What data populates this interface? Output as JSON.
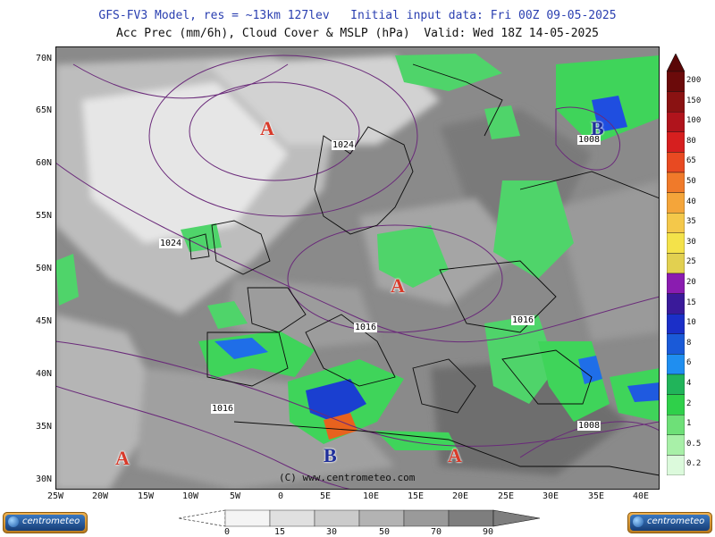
{
  "header": {
    "line1": "GFS-FV3 Model, res = ~13km 127lev   Initial input data: Fri 00Z 09-05-2025",
    "line2": "Acc Prec (mm/6h), Cloud Cover & MSLP (hPa)  Valid: Wed 18Z 14-05-2025"
  },
  "axes": {
    "latitudes": [
      "70N",
      "65N",
      "60N",
      "55N",
      "50N",
      "45N",
      "40N",
      "35N",
      "30N"
    ],
    "longitudes": [
      "25W",
      "20W",
      "15W",
      "10W",
      "5W",
      "0",
      "5E",
      "10E",
      "15E",
      "20E",
      "25E",
      "30E",
      "35E",
      "40E"
    ]
  },
  "pressure_centers": [
    {
      "type": "A",
      "color": "#d83a2a"
    },
    {
      "type": "A",
      "color": "#d83a2a"
    },
    {
      "type": "A",
      "color": "#d83a2a"
    },
    {
      "type": "A",
      "color": "#d83a2a"
    },
    {
      "type": "B",
      "color": "#1f2f9a"
    },
    {
      "type": "B",
      "color": "#1f2f9a"
    }
  ],
  "isobar_labels": [
    "1024",
    "1024",
    "1016",
    "1016",
    "1016",
    "1008",
    "1008"
  ],
  "copyright": "(C) www.centrometeo.com",
  "precip_scale": {
    "labels": [
      "200",
      "150",
      "100",
      "80",
      "65",
      "50",
      "40",
      "35",
      "30",
      "25",
      "20",
      "15",
      "10",
      "8",
      "6",
      "4",
      "2",
      "1",
      "0.5",
      "0.2"
    ],
    "colors": [
      "#6b0a0a",
      "#8a1212",
      "#b0141c",
      "#d61f1f",
      "#e84a22",
      "#f07a2a",
      "#f4a53a",
      "#f4c84a",
      "#f4e24a",
      "#e2d050",
      "#8a1cb0",
      "#3a1a9a",
      "#1b2fc8",
      "#1a5ad8",
      "#1f8ef0",
      "#21b45a",
      "#2fd04a",
      "#6ee078",
      "#a8f0a8",
      "#dcfadc"
    ]
  },
  "cloud_scale": {
    "labels": [
      "0",
      "15",
      "30",
      "50",
      "70",
      "90"
    ],
    "colors": [
      "#f4f4f4",
      "#e0e0e0",
      "#cbcbcb",
      "#b3b3b3",
      "#9a9a9a",
      "#7e7e7e"
    ]
  },
  "logos": [
    {
      "text": "centrometeo"
    },
    {
      "text": "centrometeo"
    }
  ]
}
